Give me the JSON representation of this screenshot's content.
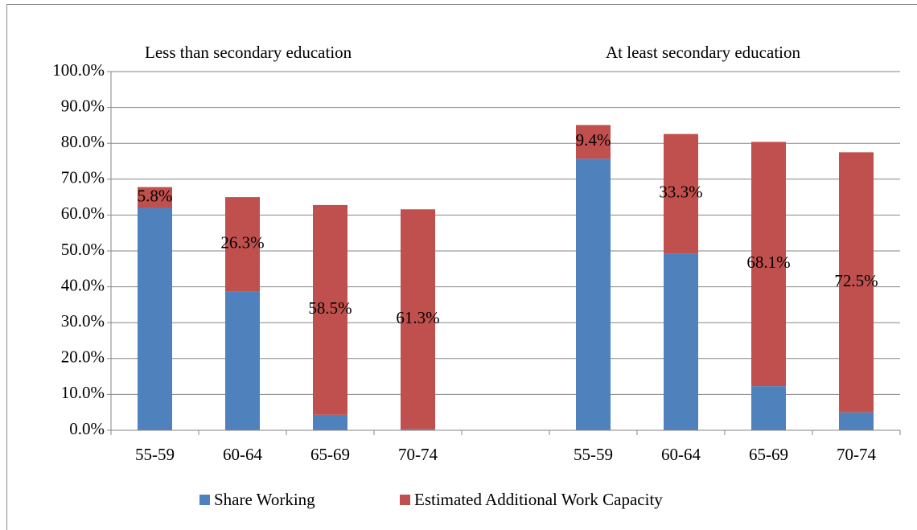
{
  "chart_data": {
    "type": "stacked-bar",
    "annotations": [
      "Less than secondary education",
      "At least secondary education"
    ],
    "categories": [
      "55-59",
      "60-64",
      "65-69",
      "70-74",
      null,
      "55-59",
      "60-64",
      "65-69",
      "70-74"
    ],
    "series": [
      {
        "name": "Share Working",
        "color": "#4f81bd",
        "values": [
          62,
          38.7,
          4.3,
          0.3,
          null,
          75.7,
          49.3,
          12.3,
          5.0
        ]
      },
      {
        "name": "Estimated Additional Work Capacity",
        "color": "#c0504d",
        "values": [
          5.8,
          26.3,
          58.5,
          61.3,
          null,
          9.4,
          33.3,
          68.1,
          72.5
        ],
        "value_labels": [
          "5.8%",
          "26.3%",
          "58.5%",
          "61.3%",
          null,
          "9.4%",
          "33.3%",
          "68.1%",
          "72.5%"
        ]
      }
    ],
    "ylim": [
      0,
      100
    ],
    "yticks": [
      {
        "value": 0,
        "label": "0.0%"
      },
      {
        "value": 10,
        "label": "10.0%"
      },
      {
        "value": 20,
        "label": "20.0%"
      },
      {
        "value": 30,
        "label": "30.0%"
      },
      {
        "value": 40,
        "label": "40.0%"
      },
      {
        "value": 50,
        "label": "50.0%"
      },
      {
        "value": 60,
        "label": "60.0%"
      },
      {
        "value": 70,
        "label": "70.0%"
      },
      {
        "value": 80,
        "label": "80.0%"
      },
      {
        "value": 90,
        "label": "90.0%"
      },
      {
        "value": 100,
        "label": "100.0%"
      }
    ],
    "grid": true,
    "legend": "bottom"
  }
}
